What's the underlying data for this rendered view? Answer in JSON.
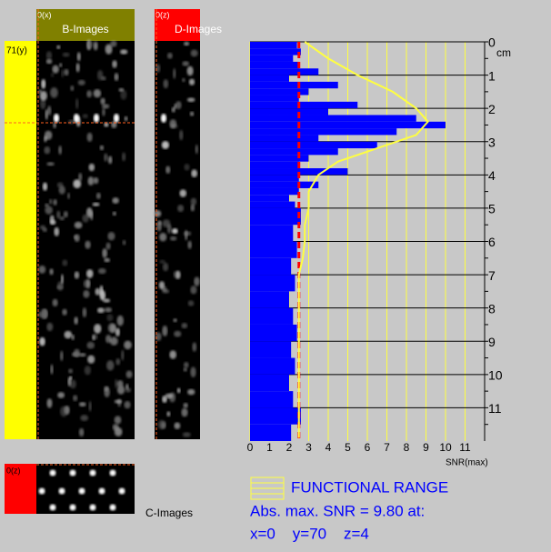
{
  "panels": {
    "y_label": "71(y)",
    "b_images": {
      "title": "B-Images",
      "corner_label": "0(x)"
    },
    "d_images": {
      "title": "D-Images",
      "corner_label": "0(z)"
    },
    "c_images": {
      "title": "C-Images",
      "corner_label": "0(z)"
    }
  },
  "chart_data": {
    "type": "profile",
    "xlabel": "SNR(max)",
    "ylabel": "cm",
    "xlim": [
      0,
      12
    ],
    "xticks": [
      0,
      1,
      2,
      3,
      4,
      5,
      6,
      7,
      8,
      9,
      10,
      11
    ],
    "ylim": [
      0,
      12
    ],
    "yticks": [
      0,
      1,
      2,
      3,
      4,
      5,
      6,
      7,
      8,
      9,
      10,
      11
    ],
    "threshold": 2.5,
    "profile": {
      "color": "#0000ff",
      "depths": [
        0,
        0.2,
        0.4,
        0.6,
        0.8,
        1.0,
        1.2,
        1.4,
        1.6,
        1.8,
        2.0,
        2.2,
        2.4,
        2.6,
        2.8,
        3.0,
        3.2,
        3.4,
        3.6,
        3.8,
        4.0,
        4.2,
        4.4,
        4.6,
        4.8,
        5.0,
        5.5,
        6.0,
        6.5,
        7.0,
        7.5,
        8.0,
        8.5,
        9.0,
        9.5,
        10.0,
        10.5,
        11.0,
        11.5
      ],
      "values": [
        2.4,
        2.6,
        2.2,
        2.5,
        3.5,
        2.0,
        4.5,
        3.0,
        2.5,
        5.5,
        4.0,
        8.5,
        10.0,
        7.5,
        3.5,
        6.5,
        4.5,
        3.0,
        2.5,
        5.0,
        2.5,
        3.5,
        2.5,
        2.0,
        2.3,
        2.6,
        2.2,
        2.4,
        2.1,
        2.3,
        2.0,
        2.2,
        2.4,
        2.1,
        2.3,
        2.0,
        2.2,
        2.6,
        2.1
      ]
    },
    "functional_range": {
      "name": "FUNCTIONAL RANGE",
      "color": "#ffff40",
      "depths": [
        0,
        0.5,
        1.0,
        1.5,
        2.0,
        2.4,
        2.8,
        3.2,
        3.6,
        4.0,
        4.5,
        5.0,
        5.5,
        6.0,
        6.5,
        7.0,
        8.0,
        11.9
      ],
      "values": [
        2.8,
        4.0,
        5.5,
        7.3,
        8.5,
        9.1,
        8.5,
        6.5,
        4.5,
        3.5,
        3.0,
        3.0,
        2.8,
        2.8,
        2.7,
        2.5,
        2.5,
        2.5
      ]
    }
  },
  "status": {
    "line1": "Abs. max. SNR = 9.80 at:",
    "line2": "x=0    y=70    z=4"
  }
}
